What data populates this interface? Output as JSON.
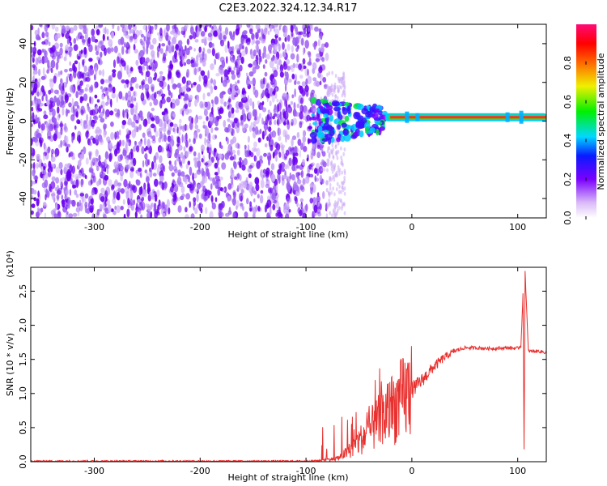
{
  "title": "C2E3.2022.324.12.34.R17",
  "colors": {
    "snr_line": "#e8302e",
    "scatter_dark": "#6a00f0",
    "scatter_light": "#c9a6f6",
    "axis": "#000000"
  },
  "colorbar": {
    "label": "Normalized spectral amplitude",
    "ticks": [
      "0.0",
      "0.2",
      "0.4",
      "0.6",
      "0.8"
    ],
    "tick_values": [
      0.0,
      0.2,
      0.4,
      0.6,
      0.8
    ],
    "range": [
      0,
      1
    ],
    "colormap": "rainbow (white-purple-blue-cyan-green-yellow-red-magenta)"
  },
  "chart_data": [
    {
      "type": "heatmap",
      "xlabel": "Height of straight line (km)",
      "ylabel": "Frequency (Hz)",
      "xlim": [
        -360,
        127
      ],
      "ylim": [
        -50,
        50
      ],
      "xticks": [
        -300,
        -200,
        -100,
        0,
        100
      ],
      "xtick_labels": [
        "-300",
        "-200",
        "-100",
        "0",
        "100"
      ],
      "yticks": [
        -40,
        -20,
        0,
        20,
        40
      ],
      "ytick_labels": [
        "-40",
        "-20",
        "0",
        "20",
        "40"
      ],
      "noise_region_x": [
        -360,
        -80
      ],
      "signal_track": {
        "frequency_hz": 2,
        "x_start": -25,
        "x_end": 127,
        "transition_x": [
          -95,
          -25
        ]
      }
    },
    {
      "type": "line",
      "xlabel": "Height of straight line (km)",
      "ylabel": "SNR (10 * v/v)",
      "multiplier_label": "(x10⁴)",
      "xlim": [
        -360,
        127
      ],
      "ylim": [
        0,
        2.85
      ],
      "xticks": [
        -300,
        -200,
        -100,
        0,
        100
      ],
      "xtick_labels": [
        "-300",
        "-200",
        "-100",
        "0",
        "100"
      ],
      "yticks": [
        0,
        0.5,
        1.0,
        1.5,
        2.0,
        2.5
      ],
      "ytick_labels": [
        "0.0",
        "0.5",
        "1.0",
        "1.5",
        "2.0",
        "2.5"
      ],
      "series": [
        {
          "x": [
            -360,
            -200,
            -100,
            -85,
            -70,
            -60,
            -50,
            -40,
            -30,
            -20,
            -10,
            0,
            10,
            20,
            30,
            40,
            50,
            60,
            70,
            80,
            90,
            100,
            103,
            105,
            106,
            107,
            110,
            120,
            127
          ],
          "y": [
            0.01,
            0.01,
            0.01,
            0.02,
            0.05,
            0.15,
            0.3,
            0.45,
            0.6,
            0.75,
            0.9,
            1.05,
            1.2,
            1.38,
            1.52,
            1.62,
            1.67,
            1.67,
            1.66,
            1.66,
            1.67,
            1.66,
            1.7,
            2.45,
            0.2,
            2.8,
            1.62,
            1.62,
            1.6
          ]
        }
      ]
    }
  ]
}
